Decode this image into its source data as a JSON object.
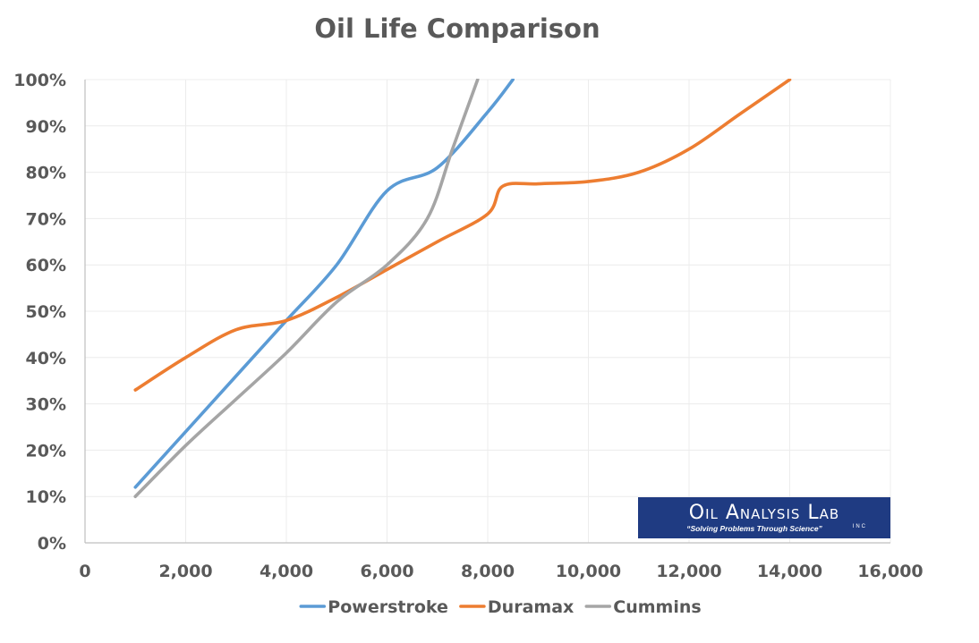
{
  "chart_data": {
    "type": "line",
    "title": "Oil Life Comparison",
    "xlabel": "",
    "ylabel": "",
    "xlim": [
      0,
      16000
    ],
    "ylim": [
      0,
      100
    ],
    "x_ticks": [
      "0",
      "2,000",
      "4,000",
      "6,000",
      "8,000",
      "10,000",
      "12,000",
      "14,000",
      "16,000"
    ],
    "x_tick_values": [
      0,
      2000,
      4000,
      6000,
      8000,
      10000,
      12000,
      14000,
      16000
    ],
    "y_ticks": [
      "0%",
      "10%",
      "20%",
      "30%",
      "40%",
      "50%",
      "60%",
      "70%",
      "80%",
      "90%",
      "100%"
    ],
    "y_tick_values": [
      0,
      10,
      20,
      30,
      40,
      50,
      60,
      70,
      80,
      90,
      100
    ],
    "grid": true,
    "legend_position": "bottom",
    "series": [
      {
        "name": "Powerstroke",
        "color": "#5b9bd5",
        "x": [
          1000,
          2000,
          3000,
          4000,
          5000,
          6000,
          7000,
          8000,
          8500
        ],
        "y": [
          12,
          24,
          36,
          48,
          60,
          76,
          81,
          93,
          100
        ]
      },
      {
        "name": "Duramax",
        "color": "#ed7d31",
        "x": [
          1000,
          2000,
          3000,
          4000,
          5000,
          6000,
          7000,
          8000,
          8300,
          9000,
          10000,
          11000,
          12000,
          13000,
          14000
        ],
        "y": [
          33,
          40,
          46,
          48,
          53,
          59,
          65,
          71,
          77,
          77.5,
          78,
          80,
          85,
          92.5,
          100
        ]
      },
      {
        "name": "Cummins",
        "color": "#a5a5a5",
        "x": [
          1000,
          2000,
          3000,
          4000,
          5000,
          6000,
          6800,
          7300,
          7800
        ],
        "y": [
          10,
          21,
          31,
          41,
          52,
          60,
          70,
          85,
          100
        ]
      }
    ]
  },
  "logo": {
    "name": "Oil Analysis Lab",
    "inc": "INC",
    "tagline": "“Solving Problems Through Science”",
    "background": "#1f3b82",
    "text_color": "#ffffff"
  }
}
